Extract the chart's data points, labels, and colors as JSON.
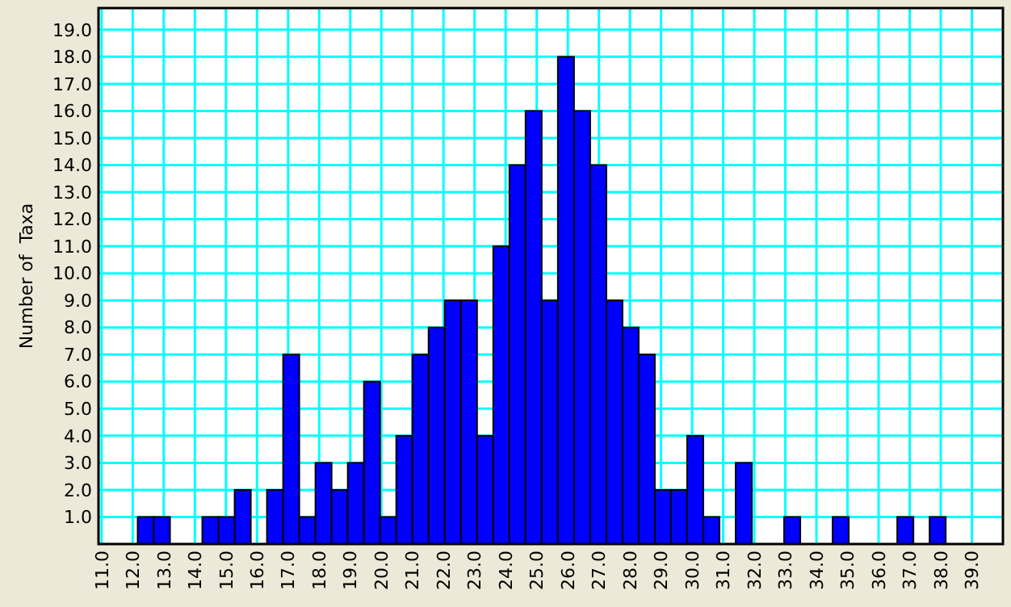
{
  "chart_data": {
    "type": "histogram",
    "ylabel": "Number of  Taxa",
    "color": "#0000ff",
    "bins": [
      12.16,
      12.68,
      13.2,
      13.72,
      14.24,
      14.76,
      15.28,
      15.8,
      16.32,
      16.84,
      17.36,
      17.88,
      18.4,
      18.92,
      19.44,
      19.96,
      20.48,
      21,
      21.52,
      22.04,
      22.56,
      23.08,
      23.6,
      24.12,
      24.64,
      25.16,
      25.68,
      26.2,
      26.72,
      27.24,
      27.76,
      28.28,
      28.8,
      29.32,
      29.84,
      30.36,
      30.88,
      31.4,
      31.92,
      32.44,
      32.96,
      33.48,
      34,
      34.52,
      35.04,
      35.56,
      36.08,
      36.6,
      37.12,
      37.64,
      38.16
    ],
    "values": [
      1,
      1,
      0,
      0,
      1,
      1,
      2,
      0,
      2,
      7,
      1,
      3,
      2,
      3,
      6,
      1,
      4,
      7,
      8,
      9,
      9,
      4,
      11,
      14,
      16,
      9,
      18,
      16,
      14,
      9,
      8,
      7,
      2,
      2,
      4,
      1,
      0,
      3,
      0,
      0,
      1,
      0,
      0,
      1,
      0,
      0,
      0,
      1,
      0,
      1
    ],
    "xlim": [
      10.9,
      40.0
    ],
    "xticks": [
      {
        "value": 11,
        "label": "11.0"
      },
      {
        "value": 12,
        "label": "12.0"
      },
      {
        "value": 13,
        "label": "13.0"
      },
      {
        "value": 14,
        "label": "14.0"
      },
      {
        "value": 15,
        "label": "15.0"
      },
      {
        "value": 16,
        "label": "16.0"
      },
      {
        "value": 17,
        "label": "17.0"
      },
      {
        "value": 18,
        "label": "18.0"
      },
      {
        "value": 19,
        "label": "19.0"
      },
      {
        "value": 20,
        "label": "20.0"
      },
      {
        "value": 21,
        "label": "21.0"
      },
      {
        "value": 22,
        "label": "22.0"
      },
      {
        "value": 23,
        "label": "23.0"
      },
      {
        "value": 24,
        "label": "24.0"
      },
      {
        "value": 25,
        "label": "25.0"
      },
      {
        "value": 26,
        "label": "26.0"
      },
      {
        "value": 27,
        "label": "27.0"
      },
      {
        "value": 28,
        "label": "28.0"
      },
      {
        "value": 29,
        "label": "29.0"
      },
      {
        "value": 30,
        "label": "30.0"
      },
      {
        "value": 31,
        "label": "31.0"
      },
      {
        "value": 32,
        "label": "32.0"
      },
      {
        "value": 33,
        "label": "33.0"
      },
      {
        "value": 34,
        "label": "34.0"
      },
      {
        "value": 35,
        "label": "35.0"
      },
      {
        "value": 36,
        "label": "36.0"
      },
      {
        "value": 37,
        "label": "37.0"
      },
      {
        "value": 38,
        "label": "38.0"
      },
      {
        "value": 39,
        "label": "39.0"
      }
    ],
    "ylim": [
      0,
      19.8
    ],
    "yticks": [
      {
        "value": 1,
        "label": "1.0"
      },
      {
        "value": 2,
        "label": "2.0"
      },
      {
        "value": 3,
        "label": "3.0"
      },
      {
        "value": 4,
        "label": "4.0"
      },
      {
        "value": 5,
        "label": "5.0"
      },
      {
        "value": 6,
        "label": "6.0"
      },
      {
        "value": 7,
        "label": "7.0"
      },
      {
        "value": 8,
        "label": "8.0"
      },
      {
        "value": 9,
        "label": "9.0"
      },
      {
        "value": 10,
        "label": "10.0"
      },
      {
        "value": 11,
        "label": "11.0"
      },
      {
        "value": 12,
        "label": "12.0"
      },
      {
        "value": 13,
        "label": "13.0"
      },
      {
        "value": 14,
        "label": "14.0"
      },
      {
        "value": 15,
        "label": "15.0"
      },
      {
        "value": 16,
        "label": "16.0"
      },
      {
        "value": 17,
        "label": "17.0"
      },
      {
        "value": 18,
        "label": "18.0"
      },
      {
        "value": 19,
        "label": "19.0"
      }
    ],
    "grid": true
  }
}
